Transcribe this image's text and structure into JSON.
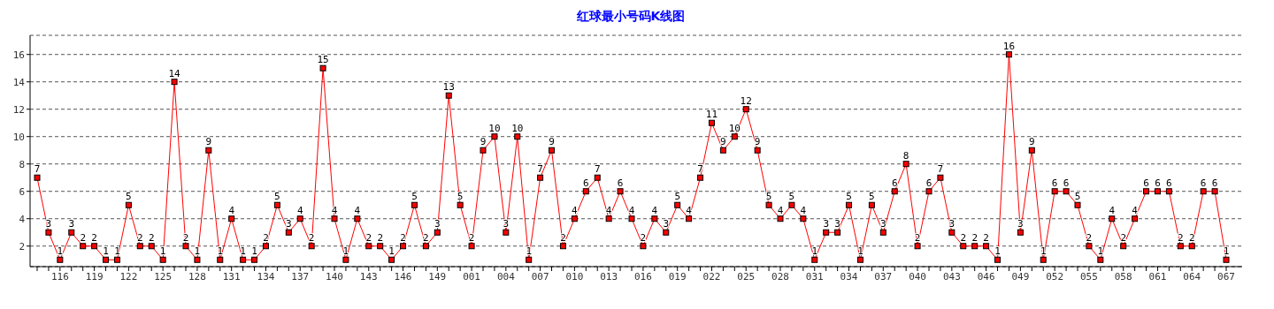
{
  "chart_data": {
    "type": "line",
    "title": "红球最小号码K线图",
    "categories": [
      null,
      null,
      "116",
      null,
      null,
      "119",
      null,
      null,
      "122",
      null,
      null,
      "125",
      null,
      null,
      "128",
      null,
      null,
      "131",
      null,
      null,
      "134",
      null,
      null,
      "137",
      null,
      null,
      "140",
      null,
      null,
      "143",
      null,
      null,
      "146",
      null,
      null,
      "149",
      null,
      null,
      "001",
      null,
      null,
      "004",
      null,
      null,
      "007",
      null,
      null,
      "010",
      null,
      null,
      "013",
      null,
      null,
      "016",
      null,
      null,
      "019",
      null,
      null,
      "022",
      null,
      null,
      "025",
      null,
      null,
      "028",
      null,
      null,
      "031",
      null,
      null,
      "034",
      null,
      null,
      "037",
      null,
      null,
      "040",
      null,
      null,
      "043",
      null,
      null,
      "046",
      null,
      null,
      "049",
      null,
      null,
      "052",
      null,
      null,
      "055",
      null,
      null,
      "058",
      null,
      null,
      "061",
      null,
      null,
      "064",
      null,
      null,
      "067"
    ],
    "series": [
      {
        "color": "#ff0000",
        "values": [
          7,
          3,
          1,
          3,
          2,
          2,
          1,
          1,
          5,
          2,
          2,
          1,
          14,
          2,
          1,
          9,
          1,
          4,
          1,
          1,
          2,
          5,
          3,
          4,
          2,
          15,
          4,
          1,
          4,
          2,
          2,
          1,
          2,
          5,
          2,
          3,
          13,
          5,
          2,
          9,
          10,
          3,
          10,
          1,
          7,
          9,
          2,
          4,
          6,
          7,
          4,
          6,
          4,
          2,
          4,
          3,
          5,
          4,
          7,
          11,
          9,
          10,
          12,
          9,
          5,
          4,
          5,
          4,
          1,
          3,
          3,
          5,
          1,
          5,
          3,
          6,
          8,
          2,
          6,
          7,
          3,
          2,
          2,
          2,
          1,
          16,
          3,
          9,
          1,
          6,
          6,
          5,
          2,
          1,
          4,
          2,
          4,
          6,
          6,
          6,
          2,
          2,
          6,
          6,
          1
        ]
      }
    ],
    "ylim": [
      0.5,
      17.4
    ],
    "yticks": [
      2,
      4,
      6,
      8,
      10,
      12,
      14,
      16
    ],
    "grid": "y",
    "marker": "square",
    "line_style": "solid",
    "data_labels": true
  }
}
